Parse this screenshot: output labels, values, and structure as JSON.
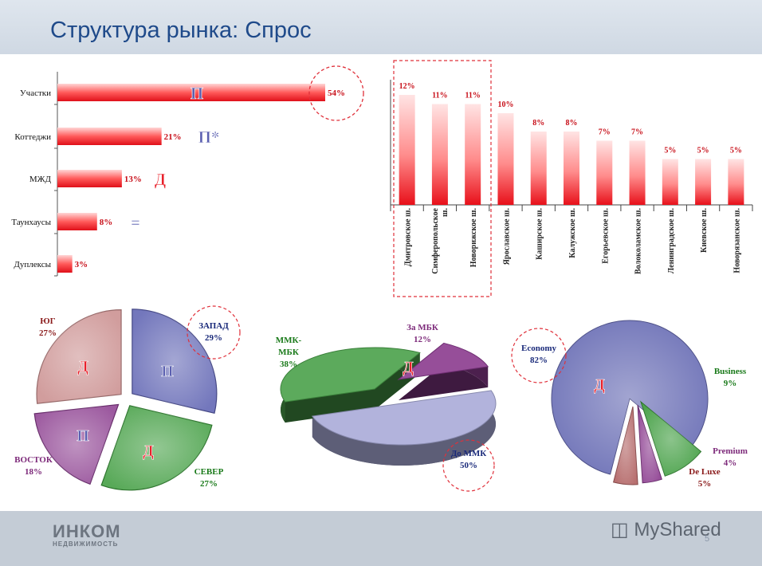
{
  "header": {
    "title": "Структура рынка: Спрос"
  },
  "footer": {
    "logo_main": "ИНКОМ",
    "logo_sub": "НЕДВИЖИМОСТЬ",
    "watermark": "MyShared",
    "page_number": "5"
  },
  "colors": {
    "red": "#e8202a",
    "blue": "#5a5fb0",
    "green": "#3a9a3a",
    "purple": "#7d2a7a",
    "darkred": "#8a1a1a",
    "navy": "#1a2a7a",
    "ring": "#e0303a"
  },
  "chart_data": [
    {
      "type": "bar",
      "orientation": "horizontal",
      "categories": [
        "Участки",
        "Коттеджи",
        "МЖД",
        "Таунхаусы",
        "Дуплексы"
      ],
      "values": [
        54,
        21,
        13,
        8,
        3
      ],
      "value_labels": [
        "54%",
        "21%",
        "13%",
        "8%",
        "3%"
      ],
      "markers": [
        "П",
        "П*",
        "Д",
        "=",
        ""
      ],
      "xlim": [
        0,
        60
      ]
    },
    {
      "type": "bar",
      "categories": [
        "Дмитровское ш.",
        "Симферопольское ш.",
        "Новорижское ш.",
        "Ярославское ш.",
        "Каширское ш.",
        "Калужское ш.",
        "Егорьевское ш.",
        "Волоколамское ш.",
        "Ленинградское ш.",
        "Киевское ш.",
        "Новорязанское ш."
      ],
      "values": [
        12,
        11,
        11,
        10,
        8,
        8,
        7,
        7,
        5,
        5,
        5
      ],
      "value_labels": [
        "12%",
        "11%",
        "11%",
        "10%",
        "8%",
        "8%",
        "7%",
        "7%",
        "5%",
        "5%",
        "5%"
      ],
      "ylim": [
        0,
        13
      ]
    },
    {
      "type": "pie",
      "slices": [
        {
          "label": "ЗАПАД",
          "value": 29,
          "value_label": "29%",
          "marker": "П",
          "color": "#5a5fb0"
        },
        {
          "label": "СЕВЕР",
          "value": 27,
          "value_label": "27%",
          "marker": "Д",
          "color": "#3a9a3a"
        },
        {
          "label": "ВОСТОК",
          "value": 18,
          "value_label": "18%",
          "marker": "П",
          "color": "#8a3c8e"
        },
        {
          "label": "ЮГ",
          "value": 27,
          "value_label": "27%",
          "marker": "Д",
          "color": "#c98c8c"
        }
      ]
    },
    {
      "type": "pie",
      "slices": [
        {
          "label": "До ММК",
          "value": 50,
          "value_label": "50%",
          "color": "#a9abd8"
        },
        {
          "label": "ММК-МБК",
          "value": 38,
          "value_label": "38%",
          "color": "#4aa04a"
        },
        {
          "label": "За МБК",
          "value": 12,
          "value_label": "12%",
          "marker": "Д",
          "color": "#8a3a8e"
        }
      ]
    },
    {
      "type": "pie",
      "slices": [
        {
          "label": "Economy",
          "value": 82,
          "value_label": "82%",
          "marker": "Д",
          "color": "#6064b0"
        },
        {
          "label": "Business",
          "value": 9,
          "value_label": "9%",
          "color": "#3a9a3a"
        },
        {
          "label": "Premium",
          "value": 4,
          "value_label": "4%",
          "color": "#8a3a8e"
        },
        {
          "label": "De Luxe",
          "value": 5,
          "value_label": "5%",
          "color": "#b06060"
        }
      ]
    }
  ]
}
